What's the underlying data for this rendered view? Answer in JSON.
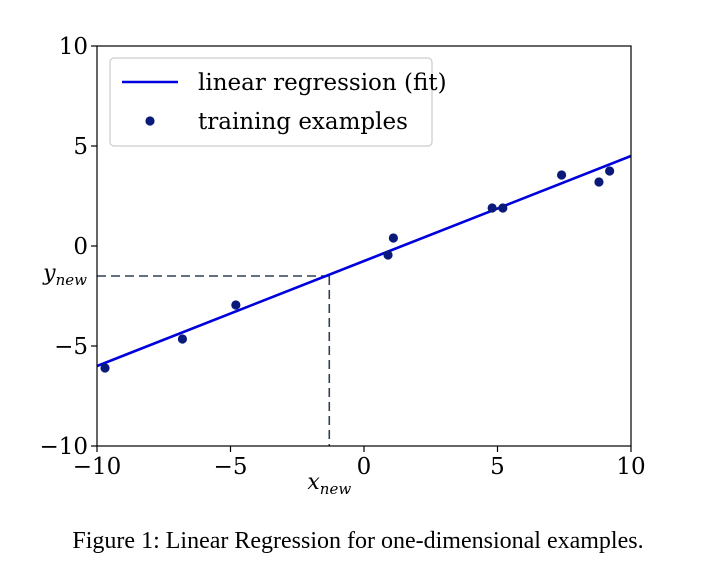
{
  "chart_data": {
    "type": "scatter",
    "xlim": [
      -10,
      10
    ],
    "ylim": [
      -10,
      10
    ],
    "xticks": [
      -10,
      -5,
      0,
      5,
      10
    ],
    "yticks": [
      -10,
      -5,
      0,
      5,
      10
    ],
    "xtick_labels": [
      "−10",
      "−5",
      "0",
      "5",
      "10"
    ],
    "ytick_labels": [
      "−10",
      "−5",
      "0",
      "5",
      "10"
    ],
    "grid": false,
    "legend_position": "top-left",
    "series": [
      {
        "name": "linear regression (fit)",
        "kind": "line",
        "color": "#0000dd",
        "x": [
          -10,
          10
        ],
        "y": [
          -6.0,
          4.5
        ]
      },
      {
        "name": "training examples",
        "kind": "scatter",
        "color": "#0a1a7a",
        "x": [
          -9.7,
          -6.8,
          -4.8,
          0.9,
          1.1,
          4.8,
          5.2,
          7.4,
          8.8,
          9.2
        ],
        "y": [
          -6.1,
          -4.65,
          -2.95,
          -0.45,
          0.4,
          1.9,
          1.9,
          3.55,
          3.2,
          3.75
        ]
      }
    ],
    "annotation": {
      "x_new": -1.3,
      "y_new": -1.5,
      "x_label_main": "x",
      "x_label_sub": "new",
      "y_label_main": "y",
      "y_label_sub": "new",
      "color": "#2f4055"
    }
  },
  "caption": "Figure 1: Linear Regression for one-dimensional examples."
}
